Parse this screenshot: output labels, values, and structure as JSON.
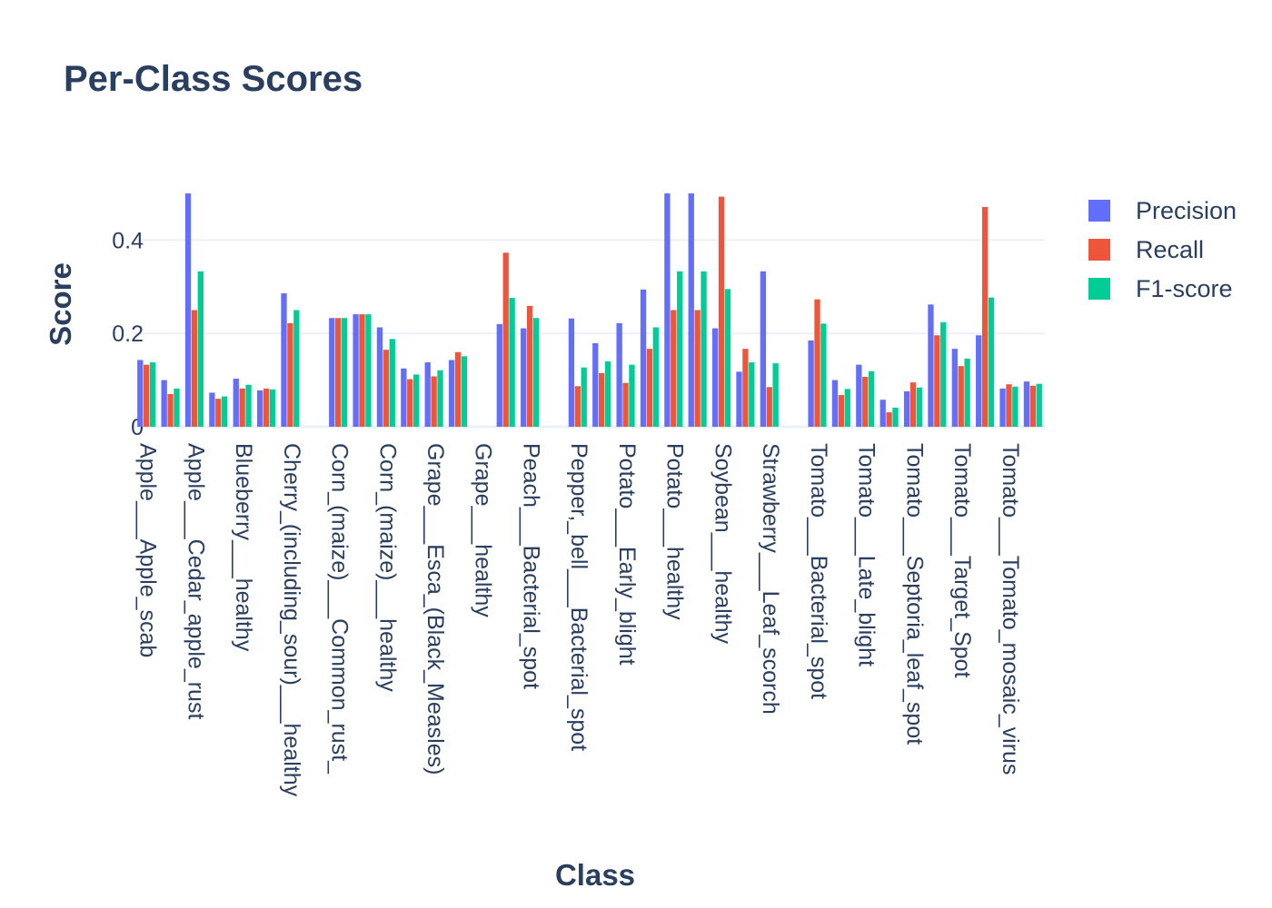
{
  "chart_data": {
    "type": "bar",
    "title": "Per-Class Scores",
    "xlabel": "Class",
    "ylabel": "Score",
    "ylim": [
      0,
      0.5
    ],
    "yticks": [
      0,
      0.2,
      0.4
    ],
    "ytick_labels": [
      "0",
      "0.2",
      "0.4"
    ],
    "grid": true,
    "legend_position": "top-right",
    "categories": [
      "Apple___Apple_scab",
      "Apple___Cedar_apple_rust",
      "Blueberry___healthy",
      "Cherry_(including_sour)___healthy",
      "Corn_(maize)___Common_rust_",
      "Corn_(maize)___healthy",
      "Grape___Esca_(Black_Measles)",
      "Grape___healthy",
      "Peach___Bacterial_spot",
      "Pepper,_bell___Bacterial_spot",
      "Potato___Early_blight",
      "Potato___healthy",
      "Soybean___healthy",
      "Strawberry___Leaf_scorch",
      "Tomato___Bacterial_spot",
      "Tomato___Late_blight",
      "Tomato___Septoria_leaf_spot",
      "Tomato___Target_Spot",
      "Tomato___Tomato_mosaic_virus"
    ],
    "sub_values": [
      [
        [
          0.143,
          0.133,
          0.138
        ],
        [
          0.1,
          0.07,
          0.082
        ]
      ],
      [
        [
          0.5,
          0.25,
          0.333
        ],
        [
          0.073,
          0.06,
          0.065
        ]
      ],
      [
        [
          0.103,
          0.082,
          0.09
        ],
        [
          0.078,
          0.082,
          0.08
        ]
      ],
      [
        [
          0.286,
          0.222,
          0.25
        ],
        [
          0,
          0,
          0
        ]
      ],
      [
        [
          0.233,
          0.233,
          0.233
        ],
        [
          0.241,
          0.241,
          0.241
        ]
      ],
      [
        [
          0.213,
          0.165,
          0.188
        ],
        [
          0.125,
          0.102,
          0.112
        ]
      ],
      [
        [
          0.138,
          0.108,
          0.121
        ],
        [
          0.143,
          0.16,
          0.151
        ]
      ],
      [
        [
          0,
          0,
          0
        ],
        [
          0.22,
          0.373,
          0.276
        ]
      ],
      [
        [
          0.211,
          0.259,
          0.233
        ],
        [
          0,
          0,
          0
        ]
      ],
      [
        [
          0.232,
          0.087,
          0.127
        ],
        [
          0.179,
          0.115,
          0.14
        ]
      ],
      [
        [
          0.222,
          0.094,
          0.133
        ],
        [
          0.294,
          0.167,
          0.213
        ]
      ],
      [
        [
          0.5,
          0.25,
          0.333
        ],
        [
          0.5,
          0.25,
          0.333
        ]
      ],
      [
        [
          0.211,
          0.493,
          0.295
        ],
        [
          0.118,
          0.167,
          0.138
        ]
      ],
      [
        [
          0.333,
          0.085,
          0.136
        ],
        [
          0,
          0,
          0
        ]
      ],
      [
        [
          0.185,
          0.273,
          0.221
        ],
        [
          0.1,
          0.068,
          0.081
        ]
      ],
      [
        [
          0.133,
          0.107,
          0.119
        ],
        [
          0.058,
          0.031,
          0.041
        ]
      ],
      [
        [
          0.076,
          0.095,
          0.084
        ],
        [
          0.262,
          0.196,
          0.224
        ]
      ],
      [
        [
          0.167,
          0.13,
          0.146
        ],
        [
          0.196,
          0.471,
          0.277
        ]
      ],
      [
        [
          0.082,
          0.091,
          0.086
        ],
        [
          0.097,
          0.088,
          0.092
        ]
      ]
    ],
    "series": [
      {
        "name": "Precision",
        "color": "#636efa"
      },
      {
        "name": "Recall",
        "color": "#ef553b"
      },
      {
        "name": "F1-score",
        "color": "#00cc96"
      }
    ]
  }
}
